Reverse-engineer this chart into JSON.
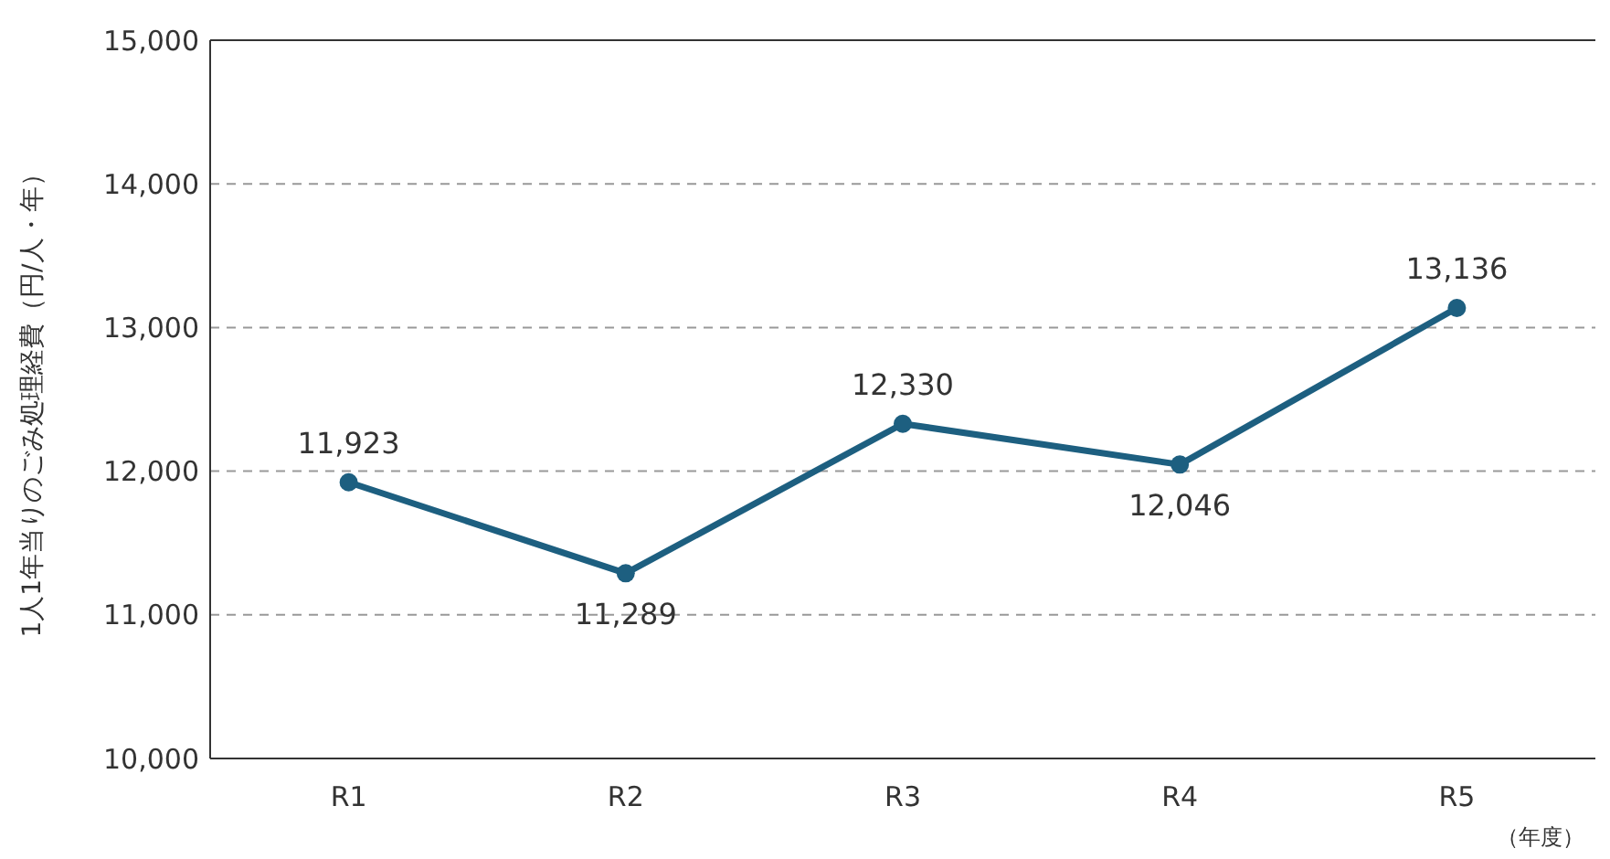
{
  "chart_data": {
    "type": "line",
    "categories": [
      "R1",
      "R2",
      "R3",
      "R4",
      "R5"
    ],
    "series": [
      {
        "color": "#1d5f80",
        "values": [
          11923,
          11289,
          12330,
          12046,
          13136
        ]
      }
    ],
    "value_labels": [
      "11,923",
      "11,289",
      "12,330",
      "12,046",
      "13,136"
    ],
    "ylabel": "1人1年当りのごみ処理経費（円/人・年）",
    "xlabel": "（年度）",
    "ylim": [
      10000,
      15000
    ],
    "yticks": [
      {
        "value": 10000,
        "label": "10,000"
      },
      {
        "value": 11000,
        "label": "11,000"
      },
      {
        "value": 12000,
        "label": "12,000"
      },
      {
        "value": 13000,
        "label": "13,000"
      },
      {
        "value": 14000,
        "label": "14,000"
      },
      {
        "value": 15000,
        "label": "15,000"
      }
    ],
    "grid": "y",
    "marker": "circle",
    "line_style": "solid"
  }
}
